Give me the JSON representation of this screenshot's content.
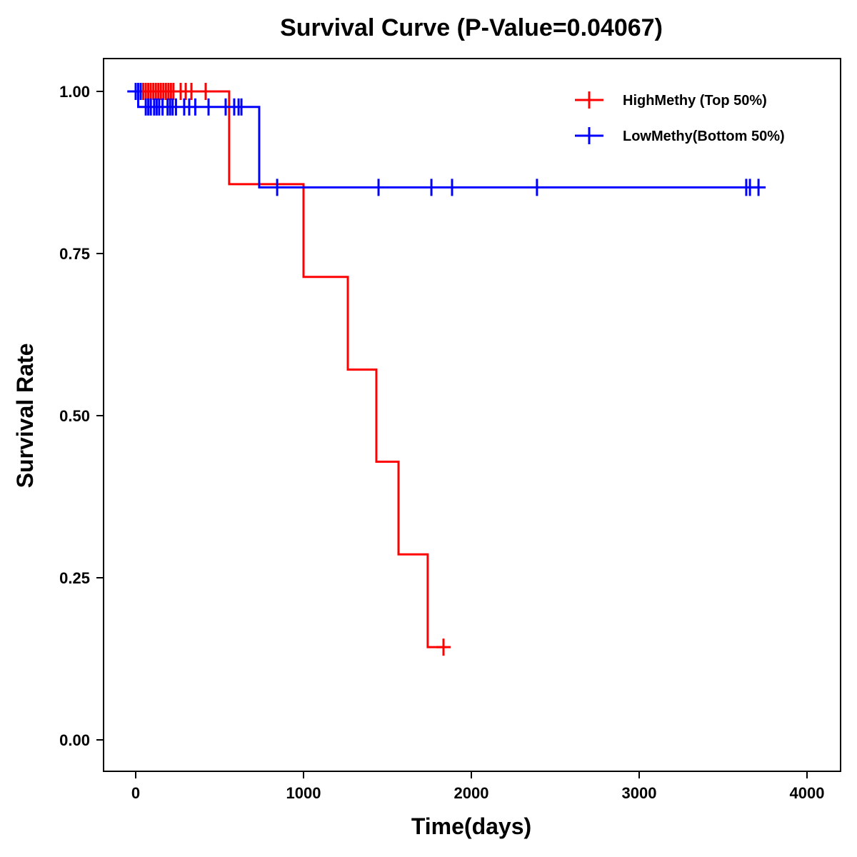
{
  "chart_data": {
    "type": "line",
    "subtype": "kaplan-meier step",
    "title": "Survival Curve (P-Value=0.04067)",
    "xlabel": "Time(days)",
    "ylabel": "Survival Rate",
    "xlim": [
      -190,
      4200
    ],
    "ylim": [
      -0.05,
      1.05
    ],
    "xticks": [
      0,
      1000,
      2000,
      3000,
      4000
    ],
    "xtick_labels": [
      "0",
      "1000",
      "2000",
      "3000",
      "4000"
    ],
    "yticks": [
      0,
      0.25,
      0.5,
      0.75,
      1.0
    ],
    "ytick_labels": [
      "0.00",
      "0.25",
      "0.50",
      "0.75",
      "1.00"
    ],
    "grid": false,
    "legend_position": "top-right",
    "series": [
      {
        "name": "HighMethy (Top 50%)",
        "color": "#ff0000",
        "steps": [
          [
            0,
            1.0
          ],
          [
            557,
            0.857
          ],
          [
            1000,
            0.714
          ],
          [
            1264,
            0.571
          ],
          [
            1434,
            0.429
          ],
          [
            1566,
            0.286
          ],
          [
            1740,
            0.143
          ]
        ],
        "end": 1834,
        "censor": [
          [
            45,
            1.0
          ],
          [
            60,
            1.0
          ],
          [
            75,
            1.0
          ],
          [
            90,
            1.0
          ],
          [
            105,
            1.0
          ],
          [
            120,
            1.0
          ],
          [
            135,
            1.0
          ],
          [
            150,
            1.0
          ],
          [
            165,
            1.0
          ],
          [
            180,
            1.0
          ],
          [
            195,
            1.0
          ],
          [
            210,
            1.0
          ],
          [
            225,
            1.0
          ],
          [
            268,
            1.0
          ],
          [
            298,
            1.0
          ],
          [
            332,
            1.0
          ],
          [
            417,
            1.0
          ],
          [
            1834,
            0.143
          ]
        ]
      },
      {
        "name": "LowMethy(Bottom 50%)",
        "color": "#0000ff",
        "steps": [
          [
            -50,
            1.0
          ],
          [
            15,
            0.976
          ],
          [
            736,
            0.852
          ]
        ],
        "start": -50,
        "end": 3711,
        "censor": [
          [
            0,
            1.0
          ],
          [
            15,
            1.0
          ],
          [
            30,
            1.0
          ],
          [
            60,
            0.976
          ],
          [
            75,
            0.976
          ],
          [
            90,
            0.976
          ],
          [
            110,
            0.976
          ],
          [
            125,
            0.976
          ],
          [
            140,
            0.976
          ],
          [
            160,
            0.976
          ],
          [
            190,
            0.976
          ],
          [
            205,
            0.976
          ],
          [
            220,
            0.976
          ],
          [
            240,
            0.976
          ],
          [
            289,
            0.976
          ],
          [
            319,
            0.976
          ],
          [
            355,
            0.976
          ],
          [
            434,
            0.976
          ],
          [
            536,
            0.976
          ],
          [
            587,
            0.976
          ],
          [
            613,
            0.976
          ],
          [
            630,
            0.976
          ],
          [
            843,
            0.852
          ],
          [
            1447,
            0.852
          ],
          [
            1762,
            0.852
          ],
          [
            1885,
            0.852
          ],
          [
            2391,
            0.852
          ],
          [
            3638,
            0.852
          ],
          [
            3660,
            0.852
          ],
          [
            3711,
            0.852
          ]
        ]
      }
    ]
  }
}
